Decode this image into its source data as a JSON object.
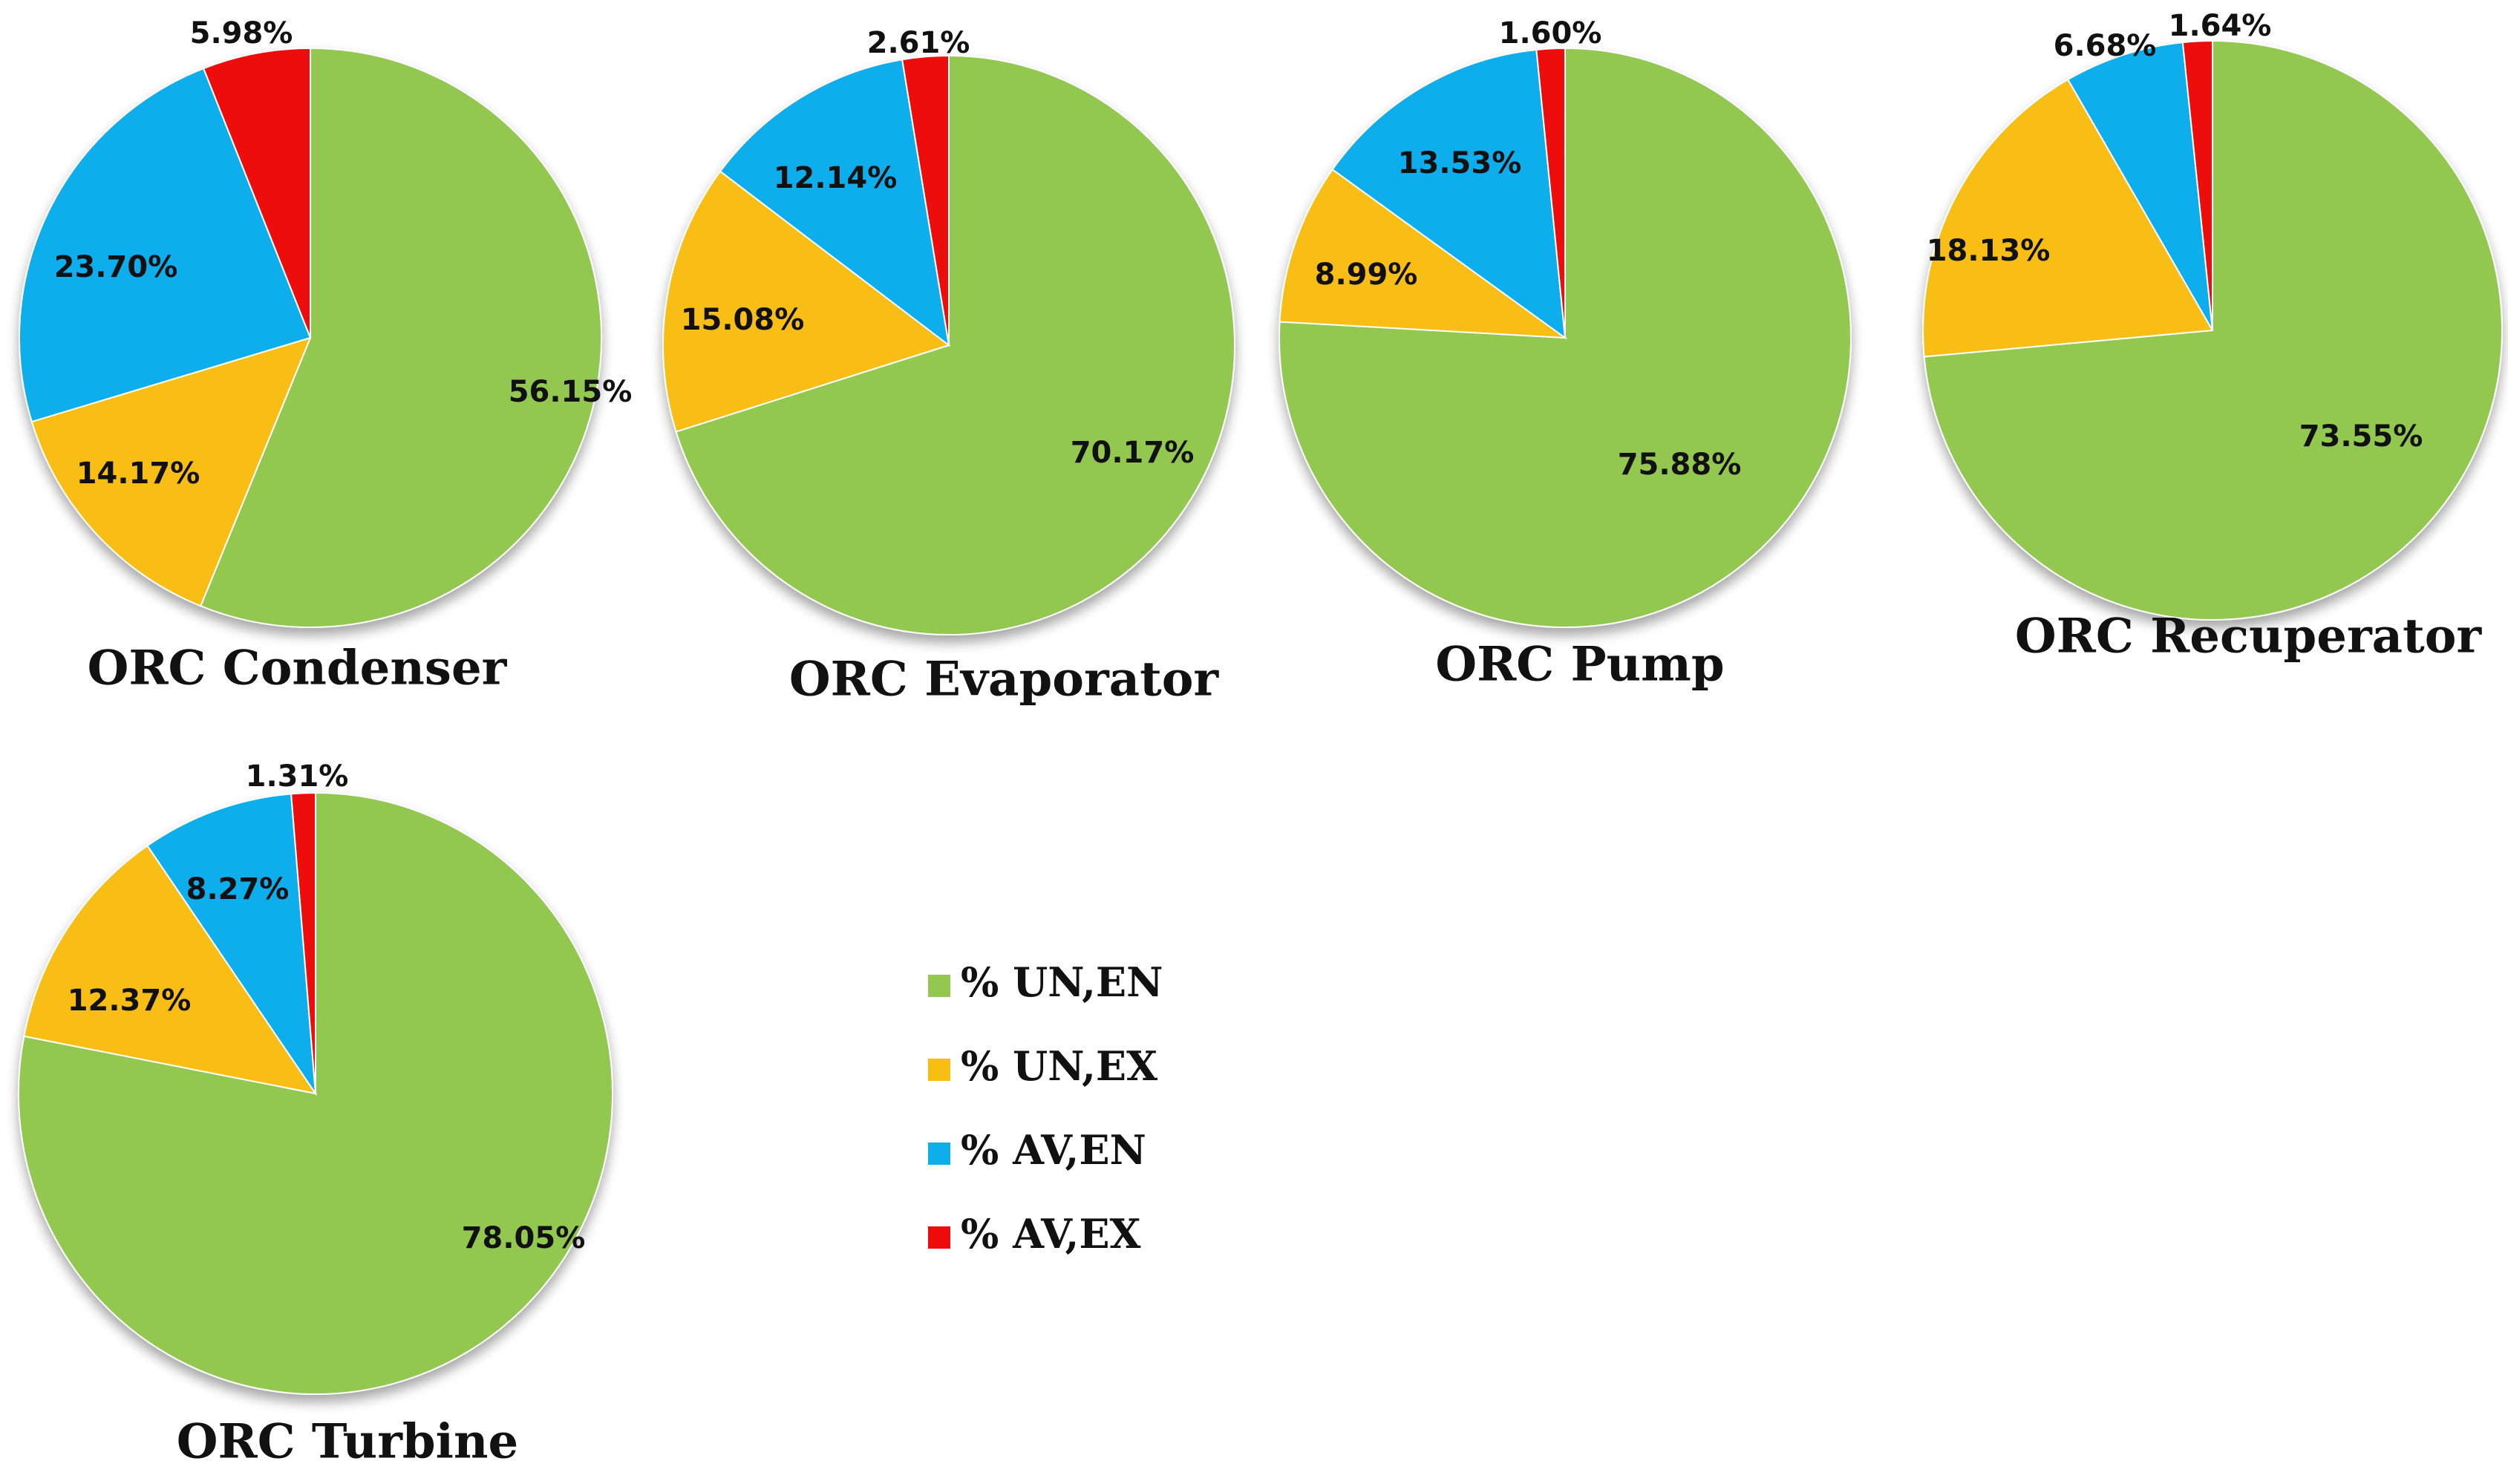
{
  "legend": [
    {
      "key": "un_en",
      "label": "% UN,EN",
      "color": "#92C84F"
    },
    {
      "key": "un_ex",
      "label": "% UN,EX",
      "color": "#F9BE12"
    },
    {
      "key": "av_en",
      "label": " % AV,EN",
      "color": "#0DAEEB"
    },
    {
      "key": "av_ex",
      "label": "% AV,EX",
      "color": "#EE0D0D"
    }
  ],
  "chart_data": [
    {
      "type": "pie",
      "title": "ORC Condenser",
      "slices": [
        {
          "key": "un_en",
          "value": 56.15,
          "label": "56.15%"
        },
        {
          "key": "un_ex",
          "value": 14.17,
          "label": "14.17%"
        },
        {
          "key": "av_en",
          "value": 23.7,
          "label": "23.70%"
        },
        {
          "key": "av_ex",
          "value": 5.98,
          "label": "5.98%"
        }
      ]
    },
    {
      "type": "pie",
      "title": "ORC Evaporator",
      "slices": [
        {
          "key": "un_en",
          "value": 70.17,
          "label": "70.17%"
        },
        {
          "key": "un_ex",
          "value": 15.08,
          "label": "15.08%"
        },
        {
          "key": "av_en",
          "value": 12.14,
          "label": "12.14%"
        },
        {
          "key": "av_ex",
          "value": 2.61,
          "label": "2.61%"
        }
      ]
    },
    {
      "type": "pie",
      "title": "ORC Pump",
      "slices": [
        {
          "key": "un_en",
          "value": 75.88,
          "label": "75.88%"
        },
        {
          "key": "un_ex",
          "value": 8.99,
          "label": "8.99%"
        },
        {
          "key": "av_en",
          "value": 13.53,
          "label": "13.53%"
        },
        {
          "key": "av_ex",
          "value": 1.6,
          "label": "1.60%"
        }
      ]
    },
    {
      "type": "pie",
      "title": "ORC Recuperator",
      "slices": [
        {
          "key": "un_en",
          "value": 73.55,
          "label": "73.55%"
        },
        {
          "key": "un_ex",
          "value": 18.13,
          "label": "18.13%"
        },
        {
          "key": "av_en",
          "value": 6.68,
          "label": "6.68%"
        },
        {
          "key": "av_ex",
          "value": 1.64,
          "label": "1.64%"
        }
      ]
    },
    {
      "type": "pie",
      "title": "ORC Turbine",
      "slices": [
        {
          "key": "un_en",
          "value": 78.05,
          "label": "78.05%"
        },
        {
          "key": "un_ex",
          "value": 12.37,
          "label": "12.37%"
        },
        {
          "key": "av_en",
          "value": 8.27,
          "label": "8.27%"
        },
        {
          "key": "av_ex",
          "value": 1.31,
          "label": "1.31%"
        }
      ]
    }
  ]
}
